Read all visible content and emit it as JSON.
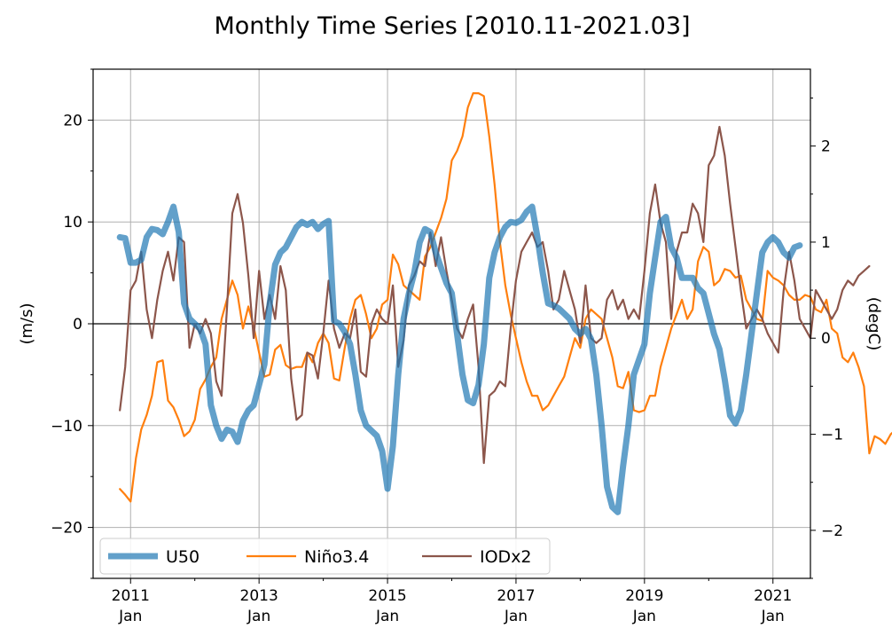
{
  "chart_data": {
    "type": "line",
    "title": "Monthly Time Series [2010.11-2021.03]",
    "x_range": [
      "2010-11",
      "2021-03"
    ],
    "left_axis": {
      "label": "(m/s)",
      "ylim": [
        -25,
        25
      ],
      "ticks": [
        20,
        10,
        0,
        -10,
        -20
      ],
      "tick_labels": [
        "20",
        "10",
        "0",
        "−10",
        "−20"
      ]
    },
    "right_axis": {
      "label": "(degC)",
      "ylim": [
        -2.5,
        2.8
      ],
      "ticks": [
        2,
        1,
        0,
        -1,
        -2
      ],
      "tick_labels": [
        "2",
        "1",
        "0",
        "−1",
        "−2"
      ]
    },
    "x_ticks": [
      {
        "year": "2011",
        "month": "Jan",
        "date": "2011-01"
      },
      {
        "year": "2013",
        "month": "Jan",
        "date": "2013-01"
      },
      {
        "year": "2015",
        "month": "Jan",
        "date": "2015-01"
      },
      {
        "year": "2017",
        "month": "Jan",
        "date": "2017-01"
      },
      {
        "year": "2019",
        "month": "Jan",
        "date": "2019-01"
      },
      {
        "year": "2021",
        "month": "Jan",
        "date": "2021-01"
      }
    ],
    "grid": true,
    "zero_line": true,
    "legend_position": "lower-left",
    "series": [
      {
        "name": "U50",
        "axis": "left",
        "color": "#1f77b4",
        "start": "2010-11",
        "values": [
          8.5,
          8.4,
          6.0,
          6.0,
          6.3,
          8.5,
          9.3,
          9.2,
          8.8,
          10.0,
          11.5,
          9.0,
          2.0,
          0.5,
          0.0,
          -0.5,
          -2.0,
          -8.0,
          -10.0,
          -11.3,
          -10.4,
          -10.6,
          -11.6,
          -9.5,
          -8.5,
          -8.0,
          -6.0,
          -4.0,
          2.0,
          5.8,
          7.0,
          7.5,
          8.5,
          9.5,
          10.0,
          9.7,
          10.0,
          9.3,
          9.8,
          10.1,
          0.3,
          0.0,
          -0.8,
          -2.0,
          -5.0,
          -8.5,
          -10.0,
          -10.5,
          -11.0,
          -12.5,
          -16.2,
          -12.0,
          -5.0,
          0.5,
          3.0,
          5.0,
          8.0,
          9.3,
          9.0,
          7.0,
          5.5,
          4.0,
          3.0,
          -1.0,
          -5.0,
          -7.5,
          -7.8,
          -6.0,
          -2.0,
          4.5,
          7.0,
          8.5,
          9.5,
          10.0,
          9.9,
          10.2,
          11.0,
          11.5,
          8.5,
          5.0,
          2.0,
          1.8,
          1.5,
          1.0,
          0.5,
          -0.5,
          -1.0,
          -0.5,
          -1.5,
          -5.0,
          -10.0,
          -16.0,
          -18.0,
          -18.5,
          -14.0,
          -10.0,
          -5.0,
          -3.5,
          -2.0,
          3.0,
          6.5,
          10.0,
          10.5,
          7.5,
          6.5,
          4.5,
          4.5,
          4.5,
          3.5,
          3.0,
          1.0,
          -1.0,
          -2.5,
          -5.5,
          -9.0,
          -9.8,
          -8.5,
          -5.0,
          -1.0,
          3.0,
          7.0,
          8.0,
          8.5,
          8.0,
          7.0,
          6.5,
          7.5,
          7.7
        ]
      },
      {
        "name": "Niño3.4",
        "axis": "right",
        "color": "#ff7f0e",
        "start": "2010-11",
        "values": [
          -1.57,
          -1.63,
          -1.7,
          -1.25,
          -0.95,
          -0.8,
          -0.6,
          -0.25,
          -0.23,
          -0.65,
          -0.72,
          -0.85,
          -1.02,
          -0.97,
          -0.85,
          -0.53,
          -0.43,
          -0.3,
          -0.2,
          0.2,
          0.4,
          0.6,
          0.45,
          0.1,
          0.33,
          0.12,
          -0.15,
          -0.4,
          -0.38,
          -0.12,
          -0.07,
          -0.28,
          -0.32,
          -0.3,
          -0.3,
          -0.15,
          -0.25,
          -0.05,
          0.05,
          -0.05,
          -0.42,
          -0.44,
          -0.1,
          0.2,
          0.4,
          0.45,
          0.25,
          0.0,
          0.1,
          0.35,
          0.4,
          0.87,
          0.77,
          0.55,
          0.5,
          0.45,
          0.4,
          0.85,
          0.95,
          1.1,
          1.25,
          1.45,
          1.85,
          1.95,
          2.1,
          2.4,
          2.55,
          2.55,
          2.52,
          2.1,
          1.6,
          1.0,
          0.55,
          0.25,
          0.0,
          -0.25,
          -0.45,
          -0.6,
          -0.6,
          -0.75,
          -0.7,
          -0.6,
          -0.5,
          -0.4,
          -0.2,
          0.0,
          -0.1,
          0.2,
          0.3,
          0.25,
          0.2,
          0.0,
          -0.2,
          -0.5,
          -0.52,
          -0.35,
          -0.75,
          -0.77,
          -0.75,
          -0.6,
          -0.6,
          -0.3,
          -0.1,
          0.1,
          0.25,
          0.4,
          0.2,
          0.3,
          0.8,
          0.95,
          0.9,
          0.55,
          0.6,
          0.72,
          0.7,
          0.63,
          0.65,
          0.4,
          0.3,
          0.2,
          0.18,
          0.7,
          0.63,
          0.6,
          0.55,
          0.45,
          0.4,
          0.4,
          0.45,
          0.43,
          0.3,
          0.27,
          0.4,
          0.1,
          0.05,
          -0.2,
          -0.25,
          -0.15,
          -0.3,
          -0.5,
          -1.2,
          -1.02,
          -1.05,
          -1.1,
          -1.0,
          -0.95,
          -0.7
        ]
      },
      {
        "name": "IODx2",
        "axis": "right",
        "color": "#8c564b",
        "start": "2010-11",
        "values": [
          -0.75,
          -0.3,
          0.5,
          0.6,
          0.9,
          0.3,
          0.0,
          0.4,
          0.7,
          0.9,
          0.6,
          1.05,
          1.0,
          -0.1,
          0.15,
          0.05,
          0.2,
          0.05,
          -0.45,
          -0.6,
          0.3,
          1.3,
          1.5,
          1.2,
          0.65,
          0.0,
          0.7,
          0.2,
          0.45,
          0.2,
          0.75,
          0.5,
          -0.42,
          -0.85,
          -0.8,
          -0.15,
          -0.18,
          -0.42,
          0.05,
          0.6,
          0.1,
          -0.1,
          0.05,
          0.0,
          0.3,
          -0.35,
          -0.4,
          0.15,
          0.3,
          0.2,
          0.15,
          0.55,
          -0.3,
          -0.02,
          0.55,
          0.65,
          0.8,
          0.75,
          1.1,
          0.75,
          1.05,
          0.7,
          0.4,
          0.1,
          0.0,
          0.2,
          0.35,
          -0.3,
          -1.3,
          -0.6,
          -0.55,
          -0.45,
          -0.5,
          0.1,
          0.6,
          0.9,
          1.0,
          1.1,
          0.95,
          1.0,
          0.7,
          0.3,
          0.4,
          0.7,
          0.5,
          0.3,
          -0.05,
          0.55,
          0.0,
          -0.05,
          0.0,
          0.4,
          0.5,
          0.3,
          0.4,
          0.2,
          0.3,
          0.2,
          0.7,
          1.3,
          1.6,
          1.2,
          1.0,
          0.2,
          0.9,
          1.1,
          1.1,
          1.4,
          1.3,
          1.0,
          1.8,
          1.9,
          2.2,
          1.9,
          1.4,
          0.95,
          0.5,
          0.1,
          0.2,
          0.3,
          0.2,
          0.05,
          -0.05,
          -0.15,
          0.5,
          0.9,
          0.6,
          0.2,
          0.1,
          0.0,
          0.5,
          0.4,
          0.3,
          0.2,
          0.3,
          0.5,
          0.6,
          0.55,
          0.65,
          0.7,
          0.75
        ]
      }
    ]
  }
}
